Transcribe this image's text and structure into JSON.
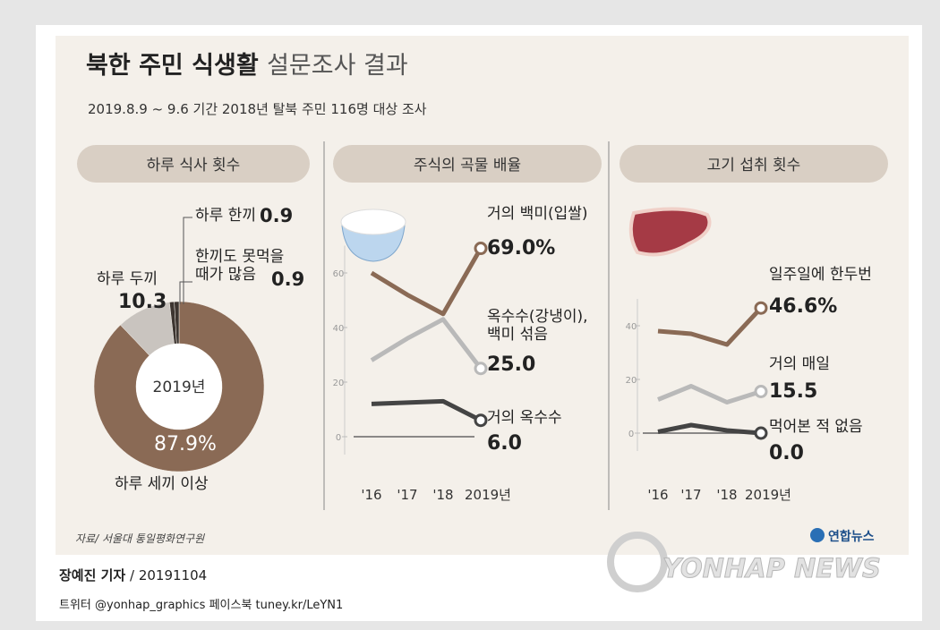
{
  "header": {
    "title_bold": "북한 주민 식생활",
    "title_light": "설문조사 결과",
    "subtitle": "2019.8.9 ~ 9.6 기간 2018년 탈북 주민 116명 대상 조사"
  },
  "chart_data": [
    {
      "type": "pie",
      "title": "하루 식사 횟수",
      "center_label": "2019년",
      "categories": [
        "하루 세끼 이상",
        "하루 두끼",
        "하루 한끼",
        "한끼도 못먹을 때가 많음"
      ],
      "values": [
        87.9,
        10.3,
        0.9,
        0.9
      ],
      "value_labels": [
        "87.9%",
        "10.3",
        "0.9",
        "0.9"
      ],
      "colors": [
        "#8a6a55",
        "#c9c4bf",
        "#3d3530",
        "#3d3530"
      ]
    },
    {
      "type": "line",
      "title": "주식의 곡물 배율",
      "categories": [
        "'16",
        "'17",
        "'18",
        "2019년"
      ],
      "ylim": [
        0,
        70
      ],
      "yticks": [
        0,
        20,
        40,
        60
      ],
      "series": [
        {
          "name": "거의 백미(입쌀)",
          "color": "#8a6a55",
          "values": [
            60,
            52,
            45,
            69.0
          ],
          "value_labels": [
            null,
            null,
            null,
            "69.0%"
          ]
        },
        {
          "name": "옥수수(강냉이), 백미 섞음",
          "color": "#b9b9b9",
          "values": [
            28,
            36,
            43,
            25.0
          ],
          "value_labels": [
            null,
            null,
            null,
            "25.0"
          ]
        },
        {
          "name": "거의 옥수수",
          "color": "#444444",
          "values": [
            12,
            12.5,
            13,
            6.0
          ],
          "value_labels": [
            null,
            null,
            null,
            "6.0"
          ]
        }
      ]
    },
    {
      "type": "line",
      "title": "고기 섭취 횟수",
      "categories": [
        "'16",
        "'17",
        "'18",
        "2019년"
      ],
      "ylim": [
        0,
        50
      ],
      "yticks": [
        0,
        20,
        40
      ],
      "series": [
        {
          "name": "일주일에 한두번",
          "color": "#8a6a55",
          "values": [
            38,
            37,
            33,
            46.6
          ],
          "value_labels": [
            null,
            null,
            null,
            "46.6%"
          ]
        },
        {
          "name": "거의 매일",
          "color": "#b9b9b9",
          "values": [
            12.5,
            17.5,
            11.5,
            15.5
          ],
          "value_labels": [
            null,
            null,
            null,
            "15.5"
          ]
        },
        {
          "name": "먹어본 적 없음",
          "color": "#444444",
          "values": [
            0.5,
            3,
            1,
            0.0
          ],
          "value_labels": [
            null,
            null,
            null,
            "0.0"
          ]
        }
      ]
    }
  ],
  "source": "자료/ 서울대 통일평화연구원",
  "logo": "연합뉴스",
  "watermark": "YONHAP NEWS",
  "footer": {
    "reporter": "장예진 기자",
    "date": " / 20191104",
    "social": "트위터 @yonhap_graphics  페이스북 tuney.kr/LeYN1"
  }
}
